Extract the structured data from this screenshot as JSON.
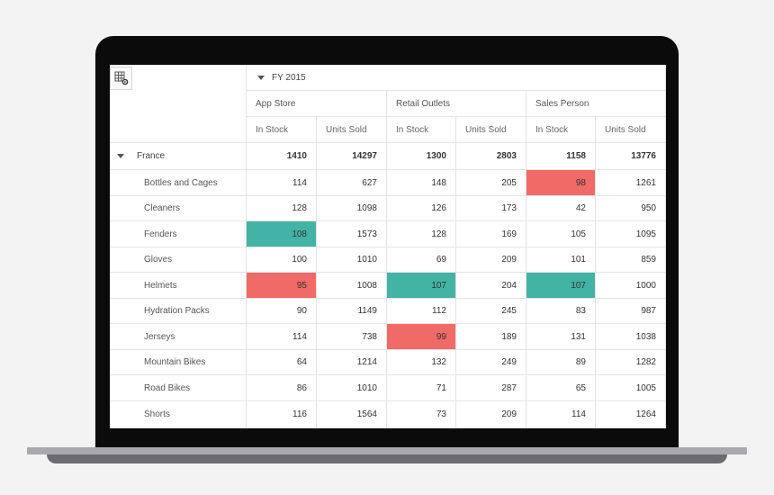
{
  "header": {
    "fiscal_year": "FY 2015"
  },
  "groups": [
    "App Store",
    "Retail Outlets",
    "Sales Person"
  ],
  "measures": [
    "In Stock",
    "Units Sold"
  ],
  "parent_row": {
    "label": "France",
    "values": [
      "1410",
      "14297",
      "1300",
      "2803",
      "1158",
      "13776"
    ]
  },
  "rows": [
    {
      "label": "Bottles and Cages",
      "values": [
        "114",
        "627",
        "148",
        "205",
        "98",
        "1261"
      ]
    },
    {
      "label": "Cleaners",
      "values": [
        "128",
        "1098",
        "126",
        "173",
        "42",
        "950"
      ]
    },
    {
      "label": "Fenders",
      "values": [
        "108",
        "1573",
        "128",
        "169",
        "105",
        "1095"
      ]
    },
    {
      "label": "Gloves",
      "values": [
        "100",
        "1010",
        "69",
        "209",
        "101",
        "859"
      ]
    },
    {
      "label": "Helmets",
      "values": [
        "95",
        "1008",
        "107",
        "204",
        "107",
        "1000"
      ]
    },
    {
      "label": "Hydration Packs",
      "values": [
        "90",
        "1149",
        "112",
        "245",
        "83",
        "987"
      ]
    },
    {
      "label": "Jerseys",
      "values": [
        "114",
        "738",
        "99",
        "189",
        "131",
        "1038"
      ]
    },
    {
      "label": "Mountain Bikes",
      "values": [
        "64",
        "1214",
        "132",
        "249",
        "89",
        "1282"
      ]
    },
    {
      "label": "Road Bikes",
      "values": [
        "86",
        "1010",
        "71",
        "287",
        "65",
        "1005"
      ]
    },
    {
      "label": "Shorts",
      "values": [
        "116",
        "1564",
        "73",
        "209",
        "114",
        "1264"
      ]
    }
  ],
  "highlights": [
    {
      "row": 0,
      "col": 4,
      "color": "#f06a68"
    },
    {
      "row": 2,
      "col": 0,
      "color": "#43b3a5"
    },
    {
      "row": 4,
      "col": 0,
      "color": "#f06a68"
    },
    {
      "row": 4,
      "col": 2,
      "color": "#43b3a5"
    },
    {
      "row": 4,
      "col": 4,
      "color": "#43b3a5"
    },
    {
      "row": 6,
      "col": 2,
      "color": "#f06a68"
    }
  ],
  "icons": {
    "settings": "grid-settings-icon",
    "expand": "caret-down-icon"
  }
}
